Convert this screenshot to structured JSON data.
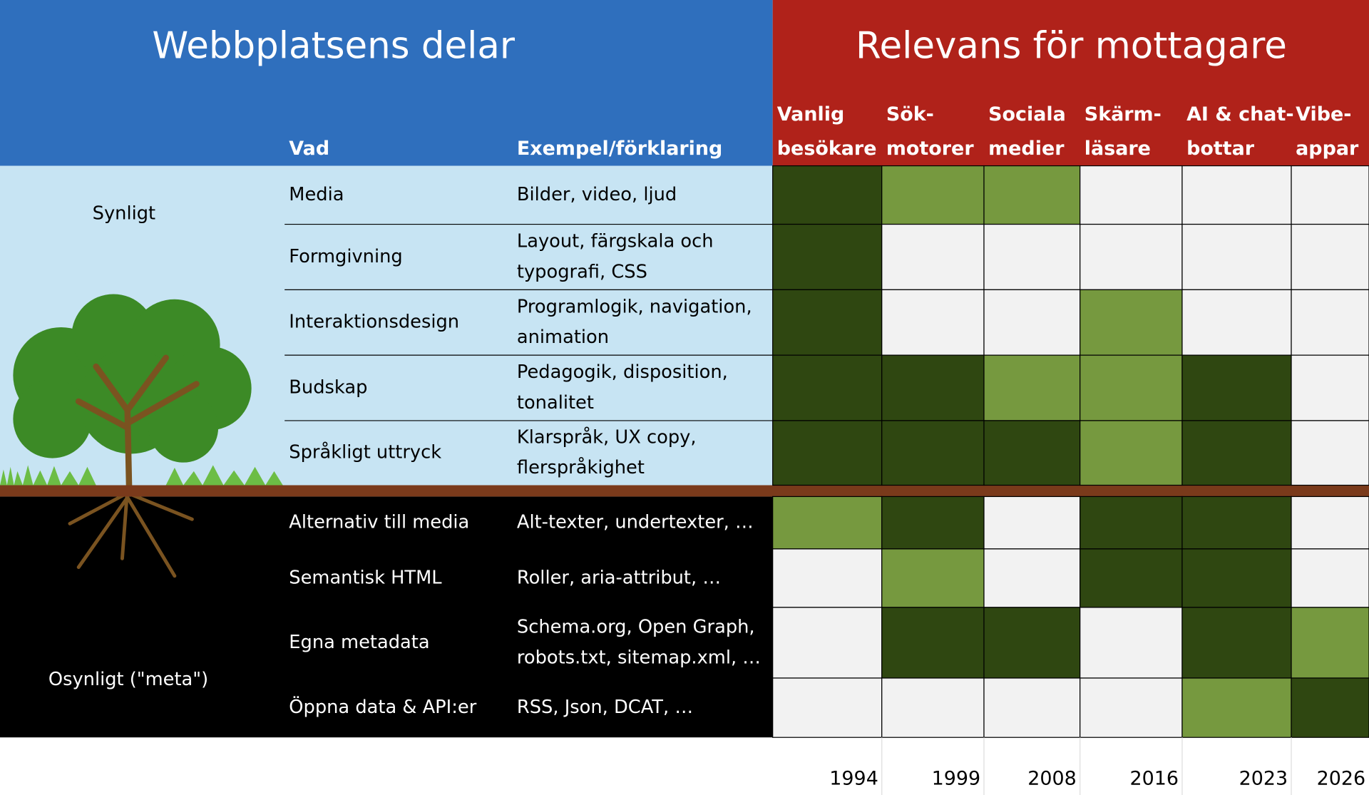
{
  "header": {
    "left_title": "Webbplatsens delar",
    "right_title": "Relevans för mottagare",
    "col_vad": "Vad",
    "col_exempel": "Exempel/förklaring"
  },
  "columns": [
    {
      "header": [
        "Vanlig",
        "besökare"
      ],
      "year": "1994"
    },
    {
      "header": [
        "Sök-",
        "motorer"
      ],
      "year": "1999"
    },
    {
      "header": [
        "Sociala",
        "medier"
      ],
      "year": "2008"
    },
    {
      "header": [
        "Skärm-",
        "läsare"
      ],
      "year": "2016"
    },
    {
      "header": [
        "AI & chat-",
        "bottar"
      ],
      "year": "2023"
    },
    {
      "header": [
        "Vibe-",
        "appar"
      ],
      "year": "2026"
    }
  ],
  "sections": {
    "visible": "Synligt",
    "invisible": "Osynligt (\"meta\")"
  },
  "rows": [
    {
      "vad": "Media",
      "exempel": [
        "Bilder, video, ljud"
      ],
      "cells": [
        "#2f4711",
        "#76993f",
        "#76993f",
        "#f2f2f2",
        "#f2f2f2",
        "#f2f2f2"
      ]
    },
    {
      "vad": "Formgivning",
      "exempel": [
        "Layout, färgskala och",
        "typografi, CSS"
      ],
      "cells": [
        "#2f4711",
        "#f2f2f2",
        "#f2f2f2",
        "#f2f2f2",
        "#f2f2f2",
        "#f2f2f2"
      ]
    },
    {
      "vad": "Interaktionsdesign",
      "exempel": [
        "Programlogik, navigation,",
        "animation"
      ],
      "cells": [
        "#2f4711",
        "#f2f2f2",
        "#f2f2f2",
        "#76993f",
        "#f2f2f2",
        "#f2f2f2"
      ]
    },
    {
      "vad": "Budskap",
      "exempel": [
        "Pedagogik, disposition,",
        "tonalitet"
      ],
      "cells": [
        "#2f4711",
        "#2f4711",
        "#76993f",
        "#76993f",
        "#2f4711",
        "#f2f2f2"
      ]
    },
    {
      "vad": "Språkligt uttryck",
      "exempel": [
        "Klarspråk, UX copy,",
        "flerspråkighet"
      ],
      "cells": [
        "#2f4711",
        "#2f4711",
        "#2f4711",
        "#76993f",
        "#2f4711",
        "#f2f2f2"
      ]
    },
    {
      "vad": "Alternativ till media",
      "exempel": [
        "Alt-texter, undertexter, …"
      ],
      "cells": [
        "#76993f",
        "#2f4711",
        "#f2f2f2",
        "#2f4711",
        "#2f4711",
        "#f2f2f2"
      ]
    },
    {
      "vad": "Semantisk HTML",
      "exempel": [
        "Roller, aria-attribut, …"
      ],
      "cells": [
        "#f2f2f2",
        "#76993f",
        "#f2f2f2",
        "#2f4711",
        "#2f4711",
        "#f2f2f2"
      ]
    },
    {
      "vad": "Egna metadata",
      "exempel": [
        "Schema.org, Open Graph,",
        "robots.txt, sitemap.xml, …"
      ],
      "cells": [
        "#f2f2f2",
        "#2f4711",
        "#2f4711",
        "#f2f2f2",
        "#2f4711",
        "#76993f"
      ]
    },
    {
      "vad": "Öppna data & API:er",
      "exempel": [
        "RSS, Json, DCAT, …"
      ],
      "cells": [
        "#f2f2f2",
        "#f2f2f2",
        "#f2f2f2",
        "#f2f2f2",
        "#76993f",
        "#2f4711"
      ]
    }
  ]
}
